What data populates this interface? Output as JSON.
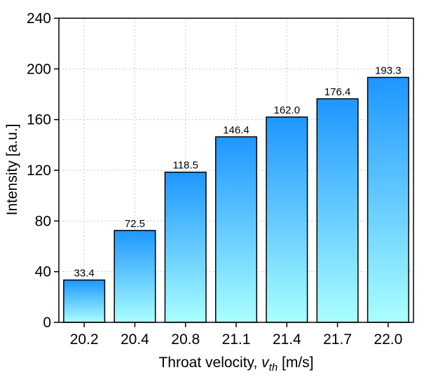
{
  "chart_data": {
    "type": "bar",
    "categories": [
      "20.2",
      "20.4",
      "20.8",
      "21.1",
      "21.4",
      "21.7",
      "22.0"
    ],
    "values": [
      33.4,
      72.5,
      118.5,
      146.4,
      162.0,
      176.4,
      193.3
    ],
    "data_labels": [
      "33.4",
      "72.5",
      "118.5",
      "146.4",
      "162.0",
      "176.4",
      "193.3"
    ],
    "title": "",
    "xlabel_main": "Throat velocity, ",
    "xlabel_symbol": "v",
    "xlabel_subscript": "th",
    "xlabel_unit": " [m/s]",
    "ylabel": "Intensity [a.u.]",
    "ylim": [
      0,
      240
    ],
    "yticks": [
      "0",
      "40",
      "80",
      "120",
      "160",
      "200",
      "240"
    ],
    "grid": true,
    "legend": "none",
    "colors": {
      "bar_top": "#1e96ff",
      "bar_bottom": "#aaffff",
      "bar_edge": "#000000",
      "grid": "#c8c8c8"
    }
  }
}
